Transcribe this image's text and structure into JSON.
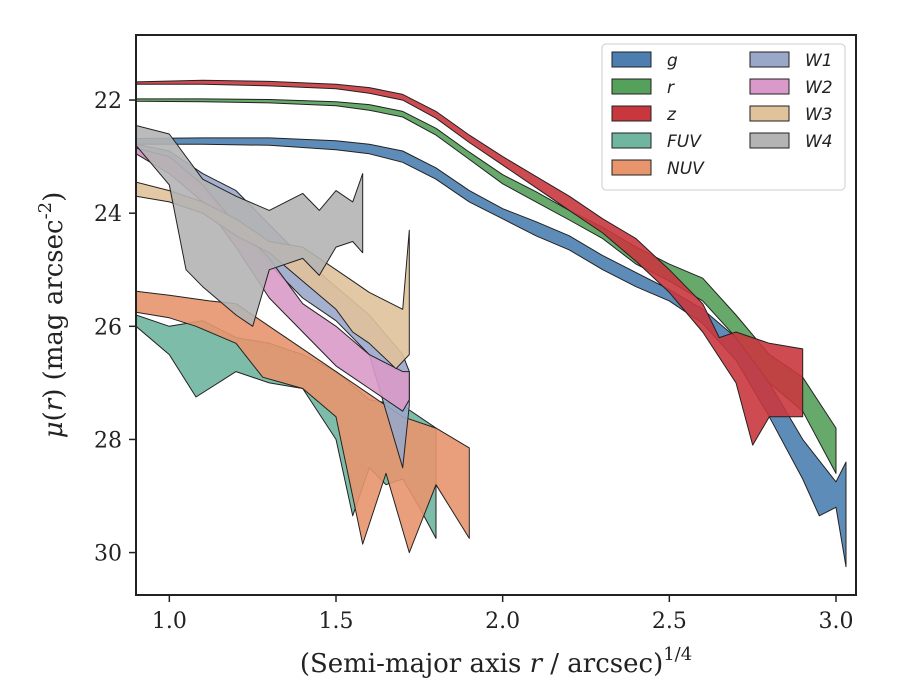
{
  "chart_data": {
    "type": "area",
    "xlabel": "(Semi-major axis r / arcsec)^1/4",
    "ylabel": "μ(r) (mag arcsec^-2)",
    "xlim": [
      0.9,
      3.06
    ],
    "ylim": [
      30.75,
      20.85
    ],
    "y_inverted": true,
    "xticks": [
      1.0,
      1.5,
      2.0,
      2.5,
      3.0
    ],
    "xtick_labels": [
      "1.0",
      "1.5",
      "2.0",
      "2.5",
      "3.0"
    ],
    "yticks": [
      22,
      24,
      26,
      28,
      30
    ],
    "ytick_labels": [
      "22",
      "24",
      "26",
      "28",
      "30"
    ],
    "grid": false,
    "legend_position": "top-right",
    "legend_columns": 2,
    "series": [
      {
        "name": "g",
        "color": "#4c7fb0",
        "upper": [
          [
            0.9,
            22.68
          ],
          [
            1.1,
            22.67
          ],
          [
            1.3,
            22.67
          ],
          [
            1.5,
            22.72
          ],
          [
            1.6,
            22.78
          ],
          [
            1.7,
            22.9
          ],
          [
            1.8,
            23.2
          ],
          [
            1.9,
            23.6
          ],
          [
            2.0,
            23.92
          ],
          [
            2.1,
            24.15
          ],
          [
            2.2,
            24.4
          ],
          [
            2.3,
            24.75
          ],
          [
            2.4,
            25.05
          ],
          [
            2.5,
            25.35
          ],
          [
            2.6,
            25.7
          ],
          [
            2.7,
            26.2
          ],
          [
            2.8,
            27.0
          ],
          [
            2.9,
            28.0
          ],
          [
            3.0,
            28.75
          ],
          [
            3.03,
            28.4
          ]
        ],
        "lower": [
          [
            0.9,
            22.78
          ],
          [
            1.1,
            22.78
          ],
          [
            1.3,
            22.8
          ],
          [
            1.5,
            22.88
          ],
          [
            1.6,
            22.95
          ],
          [
            1.7,
            23.1
          ],
          [
            1.8,
            23.4
          ],
          [
            1.9,
            23.8
          ],
          [
            2.0,
            24.1
          ],
          [
            2.1,
            24.4
          ],
          [
            2.2,
            24.65
          ],
          [
            2.3,
            25.0
          ],
          [
            2.4,
            25.3
          ],
          [
            2.5,
            25.55
          ],
          [
            2.6,
            25.95
          ],
          [
            2.7,
            26.6
          ],
          [
            2.8,
            27.6
          ],
          [
            2.9,
            28.7
          ],
          [
            2.95,
            29.35
          ],
          [
            3.0,
            29.2
          ],
          [
            3.03,
            30.25
          ]
        ]
      },
      {
        "name": "r",
        "color": "#55a05a",
        "upper": [
          [
            0.9,
            21.98
          ],
          [
            1.1,
            21.98
          ],
          [
            1.3,
            21.99
          ],
          [
            1.5,
            22.03
          ],
          [
            1.6,
            22.08
          ],
          [
            1.7,
            22.2
          ],
          [
            1.8,
            22.5
          ],
          [
            1.9,
            22.92
          ],
          [
            2.0,
            23.32
          ],
          [
            2.1,
            23.62
          ],
          [
            2.2,
            23.95
          ],
          [
            2.3,
            24.25
          ],
          [
            2.4,
            24.6
          ],
          [
            2.5,
            24.9
          ],
          [
            2.6,
            25.15
          ],
          [
            2.7,
            25.8
          ],
          [
            2.8,
            26.5
          ],
          [
            2.9,
            26.9
          ],
          [
            3.0,
            27.8
          ],
          [
            3.0,
            28.6
          ]
        ],
        "lower": [
          [
            0.9,
            22.02
          ],
          [
            1.1,
            22.03
          ],
          [
            1.3,
            22.05
          ],
          [
            1.5,
            22.1
          ],
          [
            1.6,
            22.18
          ],
          [
            1.7,
            22.3
          ],
          [
            1.8,
            22.62
          ],
          [
            1.9,
            23.05
          ],
          [
            2.0,
            23.48
          ],
          [
            2.1,
            23.8
          ],
          [
            2.2,
            24.12
          ],
          [
            2.3,
            24.45
          ],
          [
            2.4,
            24.9
          ],
          [
            2.5,
            25.2
          ],
          [
            2.6,
            25.55
          ],
          [
            2.7,
            26.2
          ],
          [
            2.8,
            27.0
          ],
          [
            2.9,
            27.5
          ],
          [
            3.0,
            28.6
          ]
        ]
      },
      {
        "name": "z",
        "color": "#c9373e",
        "upper": [
          [
            0.9,
            21.68
          ],
          [
            1.1,
            21.65
          ],
          [
            1.3,
            21.67
          ],
          [
            1.5,
            21.72
          ],
          [
            1.6,
            21.78
          ],
          [
            1.7,
            21.9
          ],
          [
            1.8,
            22.2
          ],
          [
            1.9,
            22.62
          ],
          [
            2.0,
            23.0
          ],
          [
            2.1,
            23.35
          ],
          [
            2.2,
            23.7
          ],
          [
            2.3,
            24.1
          ],
          [
            2.4,
            24.45
          ],
          [
            2.5,
            25.0
          ],
          [
            2.6,
            25.6
          ],
          [
            2.65,
            26.2
          ],
          [
            2.7,
            26.1
          ],
          [
            2.8,
            26.3
          ],
          [
            2.9,
            26.4
          ]
        ],
        "lower": [
          [
            0.9,
            21.72
          ],
          [
            1.1,
            21.72
          ],
          [
            1.3,
            21.75
          ],
          [
            1.5,
            21.8
          ],
          [
            1.6,
            21.88
          ],
          [
            1.7,
            22.0
          ],
          [
            1.8,
            22.32
          ],
          [
            1.9,
            22.75
          ],
          [
            2.0,
            23.15
          ],
          [
            2.1,
            23.55
          ],
          [
            2.2,
            23.95
          ],
          [
            2.3,
            24.35
          ],
          [
            2.4,
            24.85
          ],
          [
            2.5,
            25.4
          ],
          [
            2.6,
            26.1
          ],
          [
            2.7,
            27.0
          ],
          [
            2.75,
            28.1
          ],
          [
            2.8,
            27.6
          ],
          [
            2.9,
            27.6
          ]
        ]
      },
      {
        "name": "FUV",
        "color": "#6fb59f",
        "upper": [
          [
            0.9,
            25.8
          ],
          [
            1.0,
            26.0
          ],
          [
            1.1,
            25.9
          ],
          [
            1.2,
            26.2
          ],
          [
            1.3,
            26.3
          ],
          [
            1.4,
            26.5
          ],
          [
            1.5,
            26.8
          ],
          [
            1.6,
            27.3
          ],
          [
            1.7,
            27.4
          ],
          [
            1.8,
            27.8
          ]
        ],
        "lower": [
          [
            0.9,
            26.0
          ],
          [
            1.0,
            26.5
          ],
          [
            1.08,
            27.25
          ],
          [
            1.2,
            26.8
          ],
          [
            1.3,
            27.0
          ],
          [
            1.4,
            27.1
          ],
          [
            1.5,
            28.0
          ],
          [
            1.55,
            29.35
          ],
          [
            1.6,
            28.5
          ],
          [
            1.65,
            28.8
          ],
          [
            1.7,
            28.7
          ],
          [
            1.75,
            29.2
          ],
          [
            1.8,
            29.75
          ]
        ]
      },
      {
        "name": "NUV",
        "color": "#e8956e",
        "upper": [
          [
            0.9,
            25.38
          ],
          [
            1.0,
            25.45
          ],
          [
            1.12,
            25.55
          ],
          [
            1.2,
            25.6
          ],
          [
            1.3,
            26.0
          ],
          [
            1.4,
            26.4
          ],
          [
            1.5,
            26.8
          ],
          [
            1.6,
            27.2
          ],
          [
            1.7,
            27.6
          ],
          [
            1.8,
            27.8
          ],
          [
            1.9,
            28.15
          ]
        ],
        "lower": [
          [
            0.9,
            25.75
          ],
          [
            1.0,
            25.85
          ],
          [
            1.08,
            26.0
          ],
          [
            1.2,
            26.3
          ],
          [
            1.28,
            26.9
          ],
          [
            1.4,
            27.1
          ],
          [
            1.5,
            27.6
          ],
          [
            1.58,
            29.85
          ],
          [
            1.65,
            28.6
          ],
          [
            1.72,
            30.0
          ],
          [
            1.8,
            28.8
          ],
          [
            1.9,
            29.75
          ]
        ]
      },
      {
        "name": "W1",
        "color": "#9aa7c9",
        "upper": [
          [
            0.9,
            22.78
          ],
          [
            1.0,
            22.9
          ],
          [
            1.1,
            23.3
          ],
          [
            1.2,
            23.6
          ],
          [
            1.3,
            24.2
          ],
          [
            1.4,
            24.8
          ],
          [
            1.5,
            25.3
          ],
          [
            1.6,
            25.8
          ],
          [
            1.7,
            26.5
          ],
          [
            1.72,
            26.8
          ]
        ],
        "lower": [
          [
            0.9,
            22.95
          ],
          [
            1.0,
            23.2
          ],
          [
            1.1,
            23.6
          ],
          [
            1.2,
            24.2
          ],
          [
            1.3,
            24.9
          ],
          [
            1.4,
            25.5
          ],
          [
            1.5,
            25.9
          ],
          [
            1.6,
            26.5
          ],
          [
            1.7,
            28.5
          ],
          [
            1.72,
            27.4
          ]
        ]
      },
      {
        "name": "W2",
        "color": "#d99ac9",
        "upper": [
          [
            0.9,
            22.85
          ],
          [
            1.0,
            23.0
          ],
          [
            1.1,
            23.5
          ],
          [
            1.2,
            24.2
          ],
          [
            1.3,
            24.8
          ],
          [
            1.4,
            25.6
          ],
          [
            1.5,
            26.0
          ],
          [
            1.6,
            26.5
          ],
          [
            1.7,
            26.8
          ],
          [
            1.72,
            26.8
          ]
        ],
        "lower": [
          [
            0.9,
            22.95
          ],
          [
            1.0,
            23.3
          ],
          [
            1.1,
            23.8
          ],
          [
            1.2,
            24.6
          ],
          [
            1.3,
            25.5
          ],
          [
            1.4,
            26.1
          ],
          [
            1.5,
            26.7
          ],
          [
            1.6,
            27.1
          ],
          [
            1.7,
            27.5
          ],
          [
            1.72,
            27.3
          ]
        ]
      },
      {
        "name": "W3",
        "color": "#e0c29b",
        "upper": [
          [
            0.9,
            23.45
          ],
          [
            1.0,
            23.6
          ],
          [
            1.1,
            23.8
          ],
          [
            1.2,
            24.1
          ],
          [
            1.3,
            24.5
          ],
          [
            1.4,
            24.6
          ],
          [
            1.5,
            25.0
          ],
          [
            1.55,
            25.2
          ],
          [
            1.6,
            25.4
          ],
          [
            1.7,
            25.7
          ],
          [
            1.72,
            24.3
          ]
        ],
        "lower": [
          [
            0.9,
            23.7
          ],
          [
            1.0,
            23.8
          ],
          [
            1.1,
            24.0
          ],
          [
            1.2,
            24.4
          ],
          [
            1.3,
            24.7
          ],
          [
            1.4,
            25.2
          ],
          [
            1.5,
            25.7
          ],
          [
            1.55,
            26.1
          ],
          [
            1.6,
            26.3
          ],
          [
            1.68,
            26.75
          ],
          [
            1.72,
            26.5
          ]
        ]
      },
      {
        "name": "W4",
        "color": "#b4b4b4",
        "upper": [
          [
            0.9,
            22.45
          ],
          [
            1.0,
            22.6
          ],
          [
            1.1,
            23.4
          ],
          [
            1.2,
            23.7
          ],
          [
            1.3,
            23.95
          ],
          [
            1.4,
            23.65
          ],
          [
            1.45,
            23.95
          ],
          [
            1.5,
            23.6
          ],
          [
            1.55,
            23.8
          ],
          [
            1.58,
            23.3
          ]
        ],
        "lower": [
          [
            0.9,
            22.8
          ],
          [
            1.0,
            23.5
          ],
          [
            1.05,
            25.0
          ],
          [
            1.1,
            25.3
          ],
          [
            1.2,
            25.8
          ],
          [
            1.25,
            26.0
          ],
          [
            1.3,
            25.0
          ],
          [
            1.4,
            24.8
          ],
          [
            1.45,
            25.1
          ],
          [
            1.5,
            24.6
          ],
          [
            1.55,
            24.5
          ],
          [
            1.58,
            24.7
          ]
        ]
      }
    ]
  }
}
